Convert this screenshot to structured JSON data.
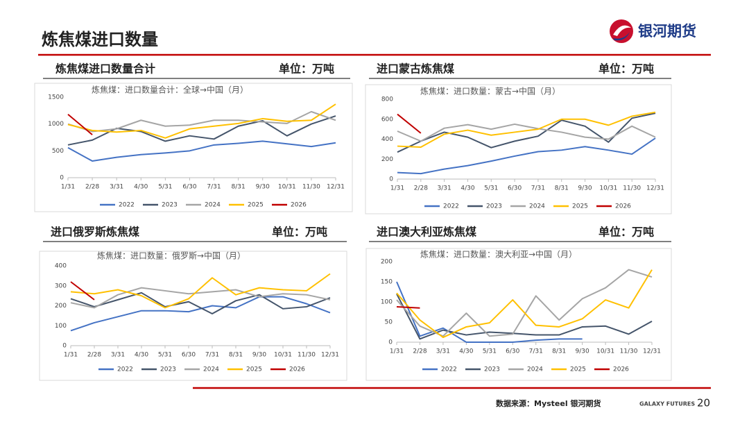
{
  "header": {
    "title": "炼焦煤进口数量",
    "logo": "银河期货"
  },
  "sections": [
    {
      "title": "炼焦煤进口数量合计",
      "unit": "单位：万吨"
    },
    {
      "title": "进口蒙古炼焦煤",
      "unit": "单位：万吨"
    },
    {
      "title": "进口俄罗斯炼焦煤",
      "unit": "单位：万吨"
    },
    {
      "title": "进口澳大利亚炼焦煤",
      "unit": "单位：万吨"
    }
  ],
  "chart_data": [
    {
      "type": "line",
      "title": "炼焦煤：进口数量合计：全球→中国（月）",
      "categories": [
        "1/31",
        "2/28",
        "3/31",
        "4/30",
        "5/31",
        "6/30",
        "7/31",
        "8/31",
        "9/30",
        "10/31",
        "11/30",
        "12/31"
      ],
      "ylim": [
        0,
        1500
      ],
      "yticks": [
        0,
        500,
        1000,
        1500
      ],
      "grid": false,
      "legend": "bottom",
      "series": [
        {
          "name": "2022",
          "color": "#4472c4",
          "values": [
            560,
            310,
            380,
            430,
            460,
            500,
            610,
            640,
            680,
            630,
            580,
            650
          ]
        },
        {
          "name": "2023",
          "color": "#44546a",
          "values": [
            610,
            700,
            920,
            860,
            680,
            780,
            720,
            960,
            1060,
            780,
            1000,
            1150
          ]
        },
        {
          "name": "2024",
          "color": "#a5a5a5",
          "values": [
            1000,
            860,
            910,
            1070,
            960,
            980,
            1070,
            1070,
            1040,
            1010,
            1230,
            1070
          ]
        },
        {
          "name": "2025",
          "color": "#ffc000",
          "values": [
            990,
            880,
            850,
            880,
            740,
            910,
            960,
            1010,
            1100,
            1050,
            1070,
            1370
          ]
        },
        {
          "name": "2026",
          "color": "#c00000",
          "values": [
            1180,
            800,
            null,
            null,
            null,
            null,
            null,
            null,
            null,
            null,
            null,
            null
          ]
        }
      ]
    },
    {
      "type": "line",
      "title": "炼焦煤：进口数量：蒙古→中国（月）",
      "categories": [
        "1/31",
        "2/28",
        "3/31",
        "4/30",
        "5/31",
        "6/30",
        "7/31",
        "8/31",
        "9/30",
        "10/31",
        "11/30",
        "12/31"
      ],
      "ylim": [
        0,
        800
      ],
      "yticks": [
        0,
        200,
        400,
        600,
        800
      ],
      "grid": false,
      "legend": "bottom",
      "series": [
        {
          "name": "2022",
          "color": "#4472c4",
          "values": [
            65,
            55,
            100,
            135,
            180,
            230,
            275,
            290,
            325,
            290,
            250,
            410
          ]
        },
        {
          "name": "2023",
          "color": "#44546a",
          "values": [
            270,
            380,
            470,
            420,
            315,
            380,
            430,
            590,
            530,
            370,
            610,
            660
          ]
        },
        {
          "name": "2024",
          "color": "#a5a5a5",
          "values": [
            480,
            380,
            510,
            545,
            500,
            550,
            505,
            470,
            420,
            400,
            530,
            420
          ]
        },
        {
          "name": "2025",
          "color": "#ffc000",
          "values": [
            330,
            320,
            450,
            490,
            440,
            470,
            500,
            600,
            600,
            540,
            630,
            670
          ]
        },
        {
          "name": "2026",
          "color": "#c00000",
          "values": [
            650,
            460,
            null,
            null,
            null,
            null,
            null,
            null,
            null,
            null,
            null,
            null
          ]
        }
      ]
    },
    {
      "type": "line",
      "title": "炼焦煤：进口数量：俄罗斯→中国（月）",
      "categories": [
        "1/31",
        "2/28",
        "3/31",
        "4/30",
        "5/31",
        "6/30",
        "7/31",
        "8/31",
        "9/30",
        "10/31",
        "11/30",
        "12/31"
      ],
      "ylim": [
        0,
        400
      ],
      "yticks": [
        0,
        100,
        200,
        300,
        400
      ],
      "grid": false,
      "legend": "bottom",
      "series": [
        {
          "name": "2022",
          "color": "#4472c4",
          "values": [
            75,
            115,
            145,
            175,
            175,
            170,
            200,
            190,
            245,
            245,
            210,
            165
          ]
        },
        {
          "name": "2023",
          "color": "#44546a",
          "values": [
            235,
            195,
            230,
            265,
            195,
            220,
            160,
            225,
            255,
            185,
            195,
            240
          ]
        },
        {
          "name": "2024",
          "color": "#a5a5a5",
          "values": [
            215,
            190,
            255,
            290,
            275,
            260,
            270,
            280,
            245,
            260,
            255,
            230
          ]
        },
        {
          "name": "2025",
          "color": "#ffc000",
          "values": [
            270,
            260,
            280,
            250,
            190,
            235,
            340,
            255,
            290,
            280,
            275,
            360
          ]
        },
        {
          "name": "2026",
          "color": "#c00000",
          "values": [
            320,
            230,
            null,
            null,
            null,
            null,
            null,
            null,
            null,
            null,
            null,
            null
          ]
        }
      ]
    },
    {
      "type": "line",
      "title": "炼焦煤：进口数量：澳大利亚→中国（月）",
      "categories": [
        "1/31",
        "2/28",
        "3/31",
        "4/30",
        "5/31",
        "6/30",
        "7/31",
        "8/31",
        "9/30",
        "10/31",
        "11/30",
        "12/31"
      ],
      "ylim": [
        0,
        200
      ],
      "yticks": [
        0,
        50,
        100,
        150,
        200
      ],
      "grid": false,
      "legend": "bottom",
      "series": [
        {
          "name": "2022",
          "color": "#4472c4",
          "values": [
            150,
            15,
            35,
            0,
            0,
            0,
            5,
            8,
            8,
            null,
            null,
            null
          ]
        },
        {
          "name": "2023",
          "color": "#44546a",
          "values": [
            120,
            8,
            30,
            18,
            25,
            22,
            18,
            18,
            38,
            40,
            20,
            52
          ]
        },
        {
          "name": "2024",
          "color": "#a5a5a5",
          "values": [
            105,
            40,
            15,
            72,
            15,
            20,
            115,
            55,
            108,
            135,
            180,
            162
          ]
        },
        {
          "name": "2025",
          "color": "#ffc000",
          "values": [
            122,
            55,
            12,
            38,
            48,
            105,
            42,
            38,
            58,
            105,
            85,
            180
          ]
        },
        {
          "name": "2026",
          "color": "#c00000",
          "values": [
            88,
            85,
            null,
            null,
            null,
            null,
            null,
            null,
            null,
            null,
            null,
            null
          ]
        }
      ]
    }
  ],
  "footer": {
    "source": "数据来源：Mysteel 银河期货",
    "brand": "GALAXY FUTURES",
    "page": "20"
  }
}
